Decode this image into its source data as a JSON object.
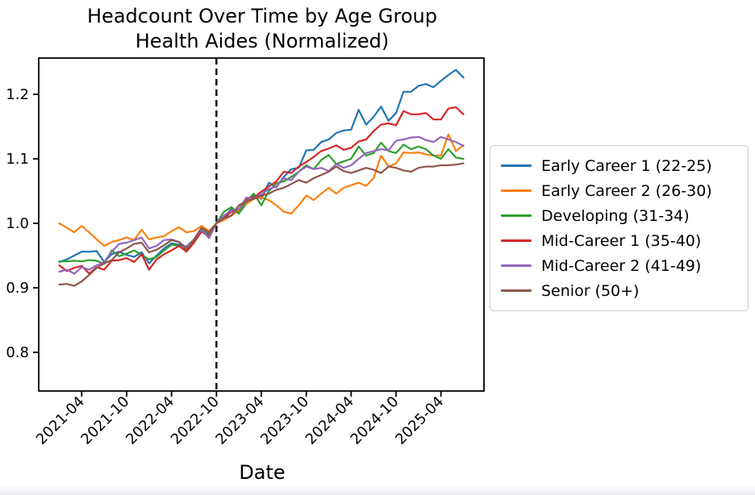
{
  "title": {
    "line1": "Headcount Over Time by Age Group",
    "line2": "Health Aides (Normalized)"
  },
  "chart_data": {
    "type": "line",
    "title": "Headcount Over Time by Age Group",
    "subtitle": "Health Aides (Normalized)",
    "xlabel": "Date",
    "ylabel": "",
    "grid": false,
    "legend_position": "right-outside",
    "ylim": [
      0.74,
      1.256
    ],
    "yticks": [
      0.8,
      0.9,
      1.0,
      1.1,
      1.2
    ],
    "xtick_labels": [
      "2021-04",
      "2021-10",
      "2022-04",
      "2022-10",
      "2023-04",
      "2023-10",
      "2024-04",
      "2024-10",
      "2025-04"
    ],
    "vline": {
      "x": "2022-10",
      "style": "dashed",
      "color": "#000000"
    },
    "x": [
      "2021-01",
      "2021-02",
      "2021-03",
      "2021-04",
      "2021-05",
      "2021-06",
      "2021-07",
      "2021-08",
      "2021-09",
      "2021-10",
      "2021-11",
      "2021-12",
      "2022-01",
      "2022-02",
      "2022-03",
      "2022-04",
      "2022-05",
      "2022-06",
      "2022-07",
      "2022-08",
      "2022-09",
      "2022-10",
      "2022-11",
      "2022-12",
      "2023-01",
      "2023-02",
      "2023-03",
      "2023-04",
      "2023-05",
      "2023-06",
      "2023-07",
      "2023-08",
      "2023-09",
      "2023-10",
      "2023-11",
      "2023-12",
      "2024-01",
      "2024-02",
      "2024-03",
      "2024-04",
      "2024-05",
      "2024-06",
      "2024-07",
      "2024-08",
      "2024-09",
      "2024-10",
      "2024-11",
      "2024-12",
      "2025-01",
      "2025-02",
      "2025-03",
      "2025-04",
      "2025-05",
      "2025-06",
      "2025-07"
    ],
    "series": [
      {
        "name": "Early Career 1 (22-25)",
        "color": "#1f77b4",
        "values": [
          0.94,
          0.944,
          0.95,
          0.956,
          0.956,
          0.957,
          0.94,
          0.952,
          0.956,
          0.951,
          0.948,
          0.955,
          0.938,
          0.95,
          0.961,
          0.969,
          0.967,
          0.964,
          0.975,
          0.99,
          0.981,
          1.0,
          1.01,
          1.022,
          1.016,
          1.03,
          1.044,
          1.038,
          1.063,
          1.056,
          1.072,
          1.084,
          1.086,
          1.113,
          1.114,
          1.126,
          1.13,
          1.14,
          1.144,
          1.145,
          1.176,
          1.153,
          1.165,
          1.181,
          1.159,
          1.171,
          1.204,
          1.204,
          1.213,
          1.216,
          1.211,
          1.221,
          1.23,
          1.238,
          1.226
        ]
      },
      {
        "name": "Early Career 2 (26-30)",
        "color": "#ff7f0e",
        "values": [
          1.0,
          0.993,
          0.986,
          0.996,
          0.986,
          0.975,
          0.965,
          0.971,
          0.974,
          0.978,
          0.974,
          0.99,
          0.975,
          0.978,
          0.98,
          0.988,
          0.994,
          0.986,
          0.988,
          0.996,
          0.988,
          1.0,
          1.005,
          1.012,
          1.02,
          1.03,
          1.038,
          1.04,
          1.036,
          1.028,
          1.018,
          1.015,
          1.028,
          1.043,
          1.036,
          1.046,
          1.055,
          1.046,
          1.055,
          1.059,
          1.063,
          1.058,
          1.07,
          1.105,
          1.088,
          1.093,
          1.11,
          1.109,
          1.11,
          1.107,
          1.105,
          1.105,
          1.138,
          1.112,
          1.121
        ]
      },
      {
        "name": "Developing (31-34)",
        "color": "#2ca02c",
        "values": [
          0.941,
          0.941,
          0.942,
          0.941,
          0.943,
          0.942,
          0.937,
          0.958,
          0.949,
          0.953,
          0.958,
          0.951,
          0.944,
          0.948,
          0.958,
          0.967,
          0.965,
          0.958,
          0.972,
          0.992,
          0.984,
          1.0,
          1.018,
          1.025,
          1.015,
          1.035,
          1.046,
          1.028,
          1.05,
          1.062,
          1.065,
          1.072,
          1.08,
          1.09,
          1.084,
          1.098,
          1.106,
          1.092,
          1.096,
          1.1,
          1.119,
          1.105,
          1.109,
          1.125,
          1.112,
          1.109,
          1.122,
          1.115,
          1.119,
          1.115,
          1.105,
          1.1,
          1.115,
          1.102,
          1.1
        ]
      },
      {
        "name": "Mid-Career 1 (35-40)",
        "color": "#d62728",
        "values": [
          0.935,
          0.926,
          0.931,
          0.934,
          0.922,
          0.932,
          0.928,
          0.942,
          0.943,
          0.946,
          0.94,
          0.952,
          0.928,
          0.944,
          0.952,
          0.958,
          0.965,
          0.956,
          0.97,
          0.987,
          0.98,
          1.0,
          1.008,
          1.018,
          1.022,
          1.038,
          1.04,
          1.049,
          1.057,
          1.065,
          1.08,
          1.078,
          1.088,
          1.095,
          1.103,
          1.112,
          1.116,
          1.121,
          1.114,
          1.117,
          1.127,
          1.13,
          1.143,
          1.153,
          1.155,
          1.152,
          1.174,
          1.169,
          1.169,
          1.171,
          1.161,
          1.161,
          1.178,
          1.18,
          1.169
        ]
      },
      {
        "name": "Mid-Career 2 (41-49)",
        "color": "#9467bd",
        "values": [
          0.925,
          0.928,
          0.922,
          0.932,
          0.928,
          0.935,
          0.94,
          0.956,
          0.968,
          0.97,
          0.974,
          0.978,
          0.961,
          0.965,
          0.974,
          0.975,
          0.971,
          0.962,
          0.975,
          0.99,
          0.977,
          1.0,
          1.012,
          1.02,
          1.022,
          1.04,
          1.038,
          1.045,
          1.053,
          1.057,
          1.07,
          1.067,
          1.08,
          1.088,
          1.084,
          1.086,
          1.081,
          1.092,
          1.086,
          1.09,
          1.1,
          1.109,
          1.112,
          1.115,
          1.113,
          1.128,
          1.13,
          1.133,
          1.134,
          1.129,
          1.126,
          1.134,
          1.13,
          1.126,
          1.12
        ]
      },
      {
        "name": "Senior (50+)",
        "color": "#8c564b",
        "values": [
          0.905,
          0.906,
          0.903,
          0.91,
          0.92,
          0.931,
          0.938,
          0.943,
          0.955,
          0.961,
          0.968,
          0.97,
          0.955,
          0.959,
          0.966,
          0.974,
          0.971,
          0.96,
          0.975,
          0.993,
          0.986,
          1.0,
          1.008,
          1.012,
          1.028,
          1.034,
          1.038,
          1.043,
          1.046,
          1.052,
          1.055,
          1.061,
          1.067,
          1.063,
          1.07,
          1.075,
          1.08,
          1.088,
          1.081,
          1.078,
          1.082,
          1.086,
          1.083,
          1.078,
          1.088,
          1.086,
          1.082,
          1.08,
          1.086,
          1.088,
          1.088,
          1.09,
          1.09,
          1.091,
          1.093
        ]
      }
    ]
  }
}
